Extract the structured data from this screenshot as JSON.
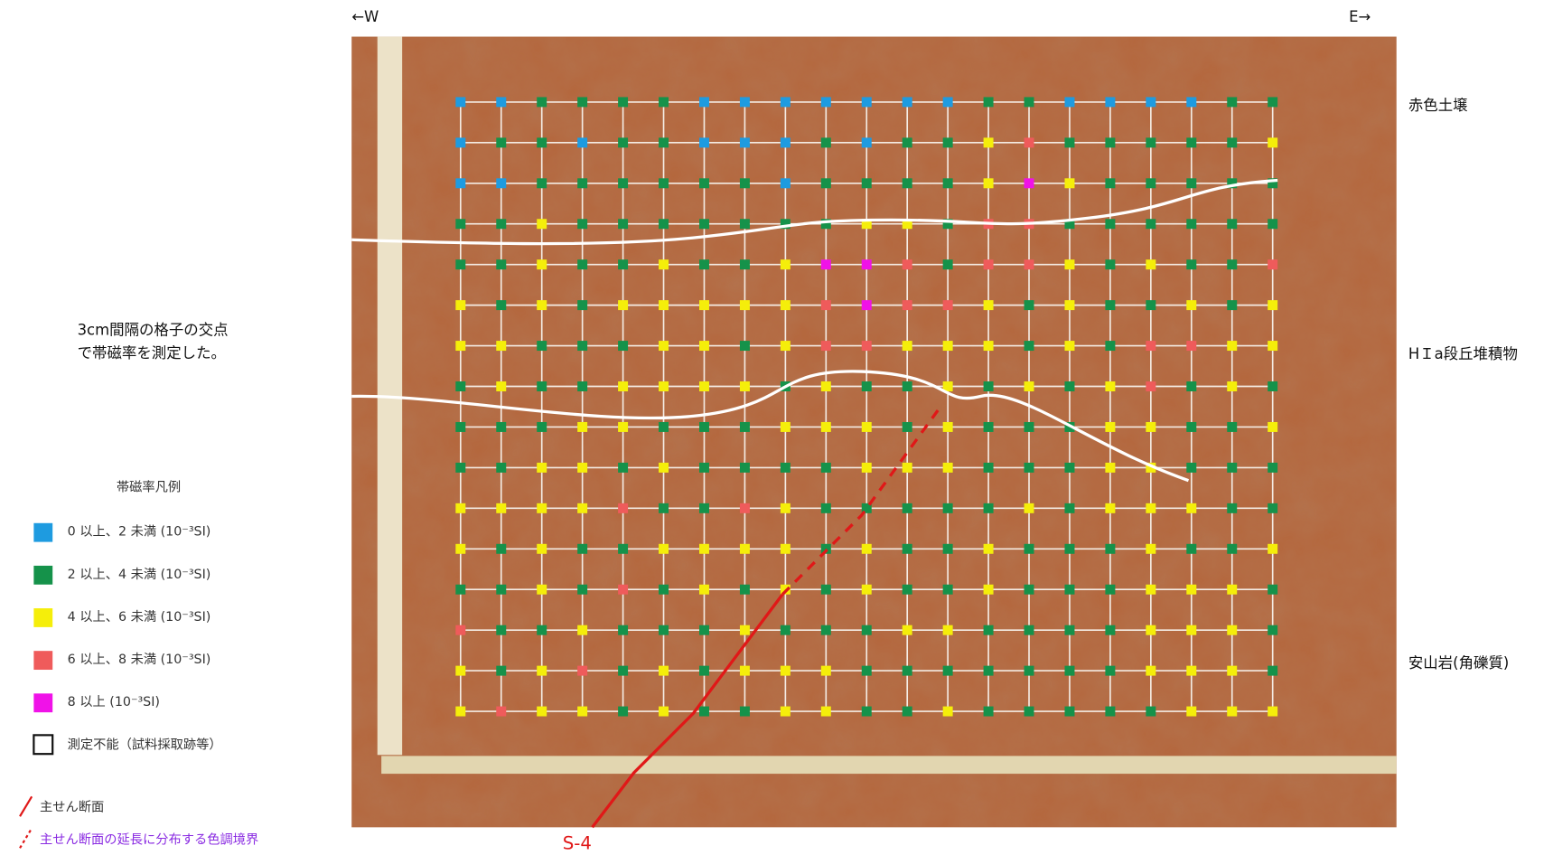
{
  "header": {
    "west": "←W",
    "east": "E→"
  },
  "layers": {
    "top": "赤色土壌",
    "middle": "HＩa段丘堆積物",
    "bottom": "安山岩(角礫質)"
  },
  "note": {
    "line1": "3cm間隔の格子の交点",
    "line2": "で帯磁率を測定した。"
  },
  "legend": {
    "title": "帯磁率凡例",
    "items": [
      {
        "label": "0 以上、2 未満 (10⁻³SI)",
        "color": "#1e9be0"
      },
      {
        "label": "2 以上、4 未満 (10⁻³SI)",
        "color": "#15924a"
      },
      {
        "label": "4 以上、6 未満 (10⁻³SI)",
        "color": "#f5ee0a"
      },
      {
        "label": "6 以上、8 未満 (10⁻³SI)",
        "color": "#ef5b5b"
      },
      {
        "label": "8 以上 (10⁻³SI)",
        "color": "#f012e8"
      }
    ],
    "unmeasurable": "測定不能（試料採取跡等）"
  },
  "lines": {
    "shear": "主せん断面",
    "boundary": "主せん断面の延長に分布する色調境界",
    "section": "S-4"
  },
  "grid": {
    "rows": [
      [
        0,
        0,
        1,
        1,
        1,
        1,
        0,
        0,
        0,
        0,
        0,
        0,
        0,
        1,
        1,
        0,
        0,
        0,
        0,
        1,
        1
      ],
      [
        0,
        1,
        1,
        0,
        1,
        1,
        0,
        0,
        0,
        1,
        0,
        1,
        1,
        2,
        3,
        1,
        1,
        1,
        1,
        1,
        2
      ],
      [
        0,
        0,
        1,
        1,
        1,
        1,
        1,
        1,
        0,
        1,
        1,
        1,
        1,
        2,
        4,
        2,
        1,
        1,
        1,
        1,
        1
      ],
      [
        1,
        1,
        2,
        1,
        1,
        1,
        1,
        1,
        1,
        1,
        2,
        2,
        1,
        3,
        3,
        1,
        1,
        1,
        1,
        1,
        1
      ],
      [
        1,
        1,
        2,
        1,
        1,
        2,
        1,
        1,
        2,
        4,
        4,
        3,
        1,
        3,
        3,
        2,
        1,
        2,
        1,
        1,
        3
      ],
      [
        2,
        1,
        2,
        1,
        2,
        2,
        2,
        2,
        2,
        3,
        4,
        3,
        3,
        2,
        1,
        2,
        1,
        1,
        2,
        1,
        2
      ],
      [
        2,
        2,
        1,
        1,
        1,
        2,
        2,
        1,
        2,
        3,
        3,
        2,
        2,
        2,
        1,
        2,
        1,
        3,
        3,
        2,
        2
      ],
      [
        1,
        2,
        1,
        1,
        2,
        2,
        2,
        2,
        1,
        2,
        1,
        1,
        2,
        1,
        2,
        1,
        2,
        3,
        1,
        2,
        1
      ],
      [
        1,
        1,
        1,
        2,
        2,
        1,
        1,
        1,
        2,
        2,
        2,
        1,
        2,
        1,
        1,
        1,
        2,
        2,
        1,
        1,
        2
      ],
      [
        1,
        1,
        2,
        2,
        1,
        2,
        1,
        1,
        1,
        1,
        2,
        2,
        2,
        1,
        1,
        1,
        2,
        2,
        1,
        1,
        1
      ],
      [
        2,
        2,
        2,
        2,
        3,
        1,
        1,
        3,
        2,
        1,
        1,
        1,
        1,
        1,
        2,
        1,
        2,
        2,
        2,
        1,
        1
      ],
      [
        2,
        1,
        2,
        1,
        1,
        2,
        2,
        2,
        2,
        1,
        2,
        1,
        1,
        2,
        1,
        1,
        1,
        2,
        1,
        1,
        2
      ],
      [
        1,
        1,
        2,
        1,
        3,
        1,
        2,
        1,
        2,
        1,
        2,
        1,
        1,
        2,
        1,
        1,
        1,
        2,
        2,
        2,
        1
      ],
      [
        3,
        1,
        1,
        2,
        1,
        1,
        1,
        2,
        1,
        1,
        1,
        2,
        2,
        1,
        1,
        1,
        1,
        2,
        2,
        2,
        1
      ],
      [
        2,
        1,
        2,
        3,
        1,
        2,
        1,
        2,
        2,
        2,
        1,
        1,
        1,
        1,
        1,
        1,
        1,
        2,
        2,
        2,
        1
      ],
      [
        2,
        3,
        2,
        2,
        1,
        2,
        1,
        1,
        2,
        2,
        1,
        1,
        2,
        1,
        1,
        1,
        1,
        1,
        2,
        2,
        2
      ]
    ]
  }
}
